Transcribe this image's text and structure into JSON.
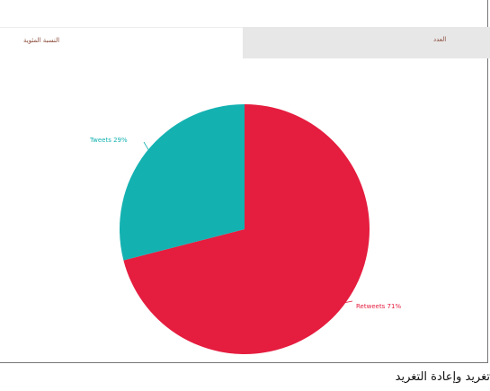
{
  "tabs": {
    "active_label": "النسبة المئوية",
    "inactive_label": "العدد"
  },
  "caption": "تغريد وإعادة التغريد",
  "chart_data": {
    "type": "pie",
    "slices": [
      {
        "label": "Tweets 29%",
        "value": 29,
        "color": "#14b1b1"
      },
      {
        "label": "Retweets 71%",
        "value": 71,
        "color": "#e51d3f"
      }
    ]
  }
}
